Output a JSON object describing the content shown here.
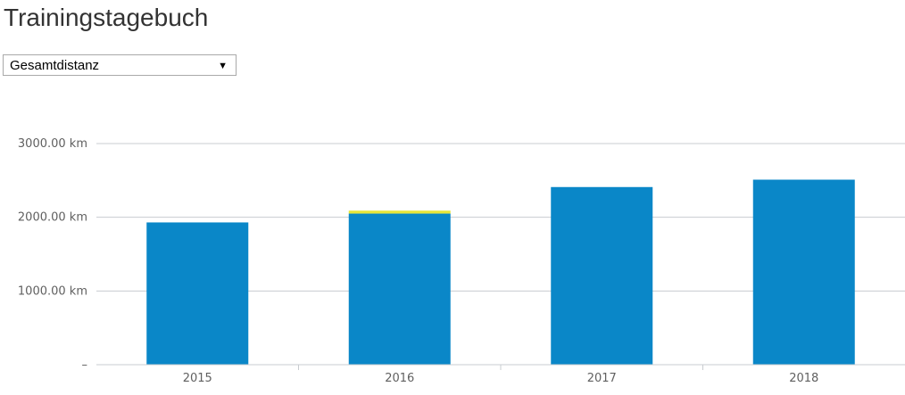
{
  "page": {
    "title": "Trainingstagebuch"
  },
  "metric_select": {
    "selected": "Gesamtdistanz",
    "arrow_icon": "triangle-down-icon"
  },
  "chart_data": {
    "type": "bar",
    "categories": [
      "2015",
      "2016",
      "2017",
      "2018"
    ],
    "series": [
      {
        "color": "#0a87c8",
        "values": [
          1930,
          2050,
          2410,
          2510
        ]
      },
      {
        "color": "#e6e63a",
        "values": [
          0,
          40,
          0,
          0
        ]
      }
    ],
    "y_ticks": [
      {
        "value": 0,
        "label": "–"
      },
      {
        "value": 1000,
        "label": "1000.00 km"
      },
      {
        "value": 2000,
        "label": "2000.00 km"
      },
      {
        "value": 3000,
        "label": "3000.00 km"
      }
    ],
    "ylim": [
      0,
      3000
    ],
    "grid": true,
    "stacked": true
  }
}
